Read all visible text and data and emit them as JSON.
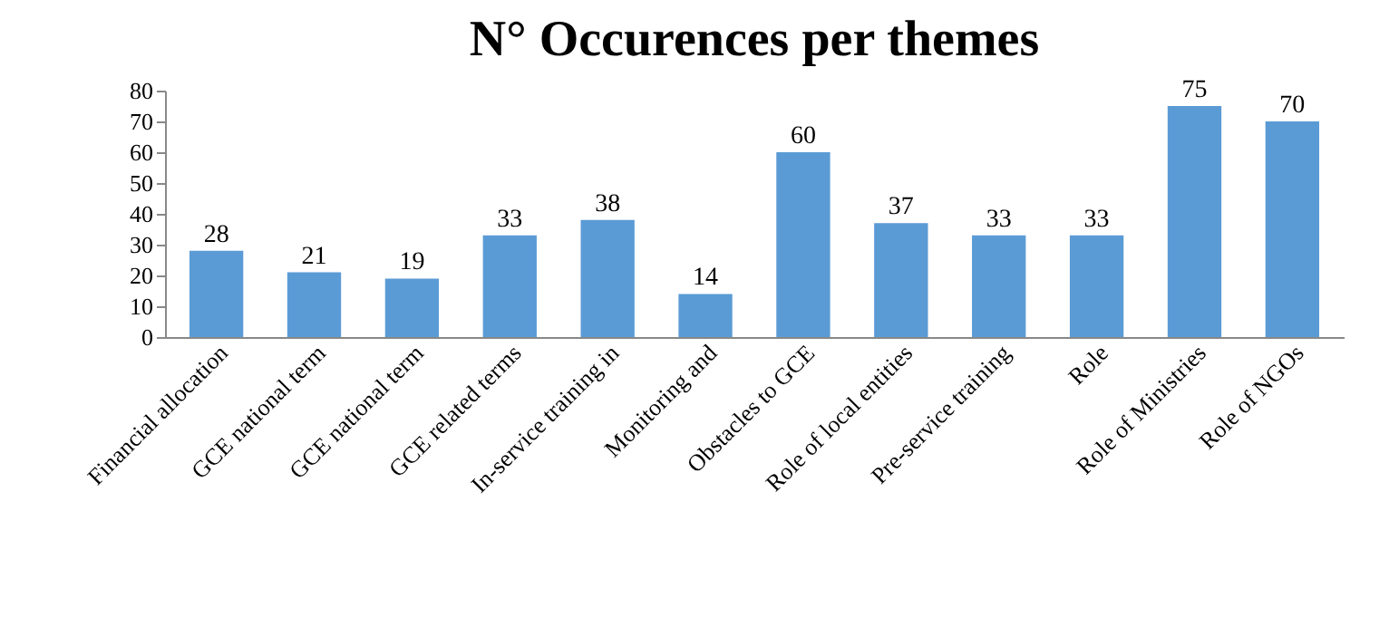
{
  "chart_data": {
    "type": "bar",
    "title": "N° Occurences per themes",
    "categories": [
      "Financial allocation",
      "GCE national term",
      "GCE national term",
      "GCE related terms",
      "In-service training in",
      "Monitoring and",
      "Obstacles to GCE",
      "Role of local entities",
      "Pre-service training",
      "Role",
      "Role of Ministries",
      "Role of NGOs"
    ],
    "values": [
      28,
      21,
      19,
      33,
      38,
      14,
      60,
      37,
      33,
      33,
      75,
      70
    ],
    "color": "#5b9bd5",
    "ylim": [
      0,
      80
    ],
    "yticks": [
      0,
      10,
      20,
      30,
      40,
      50,
      60,
      70,
      80
    ],
    "grid": false,
    "data_labels": true
  }
}
